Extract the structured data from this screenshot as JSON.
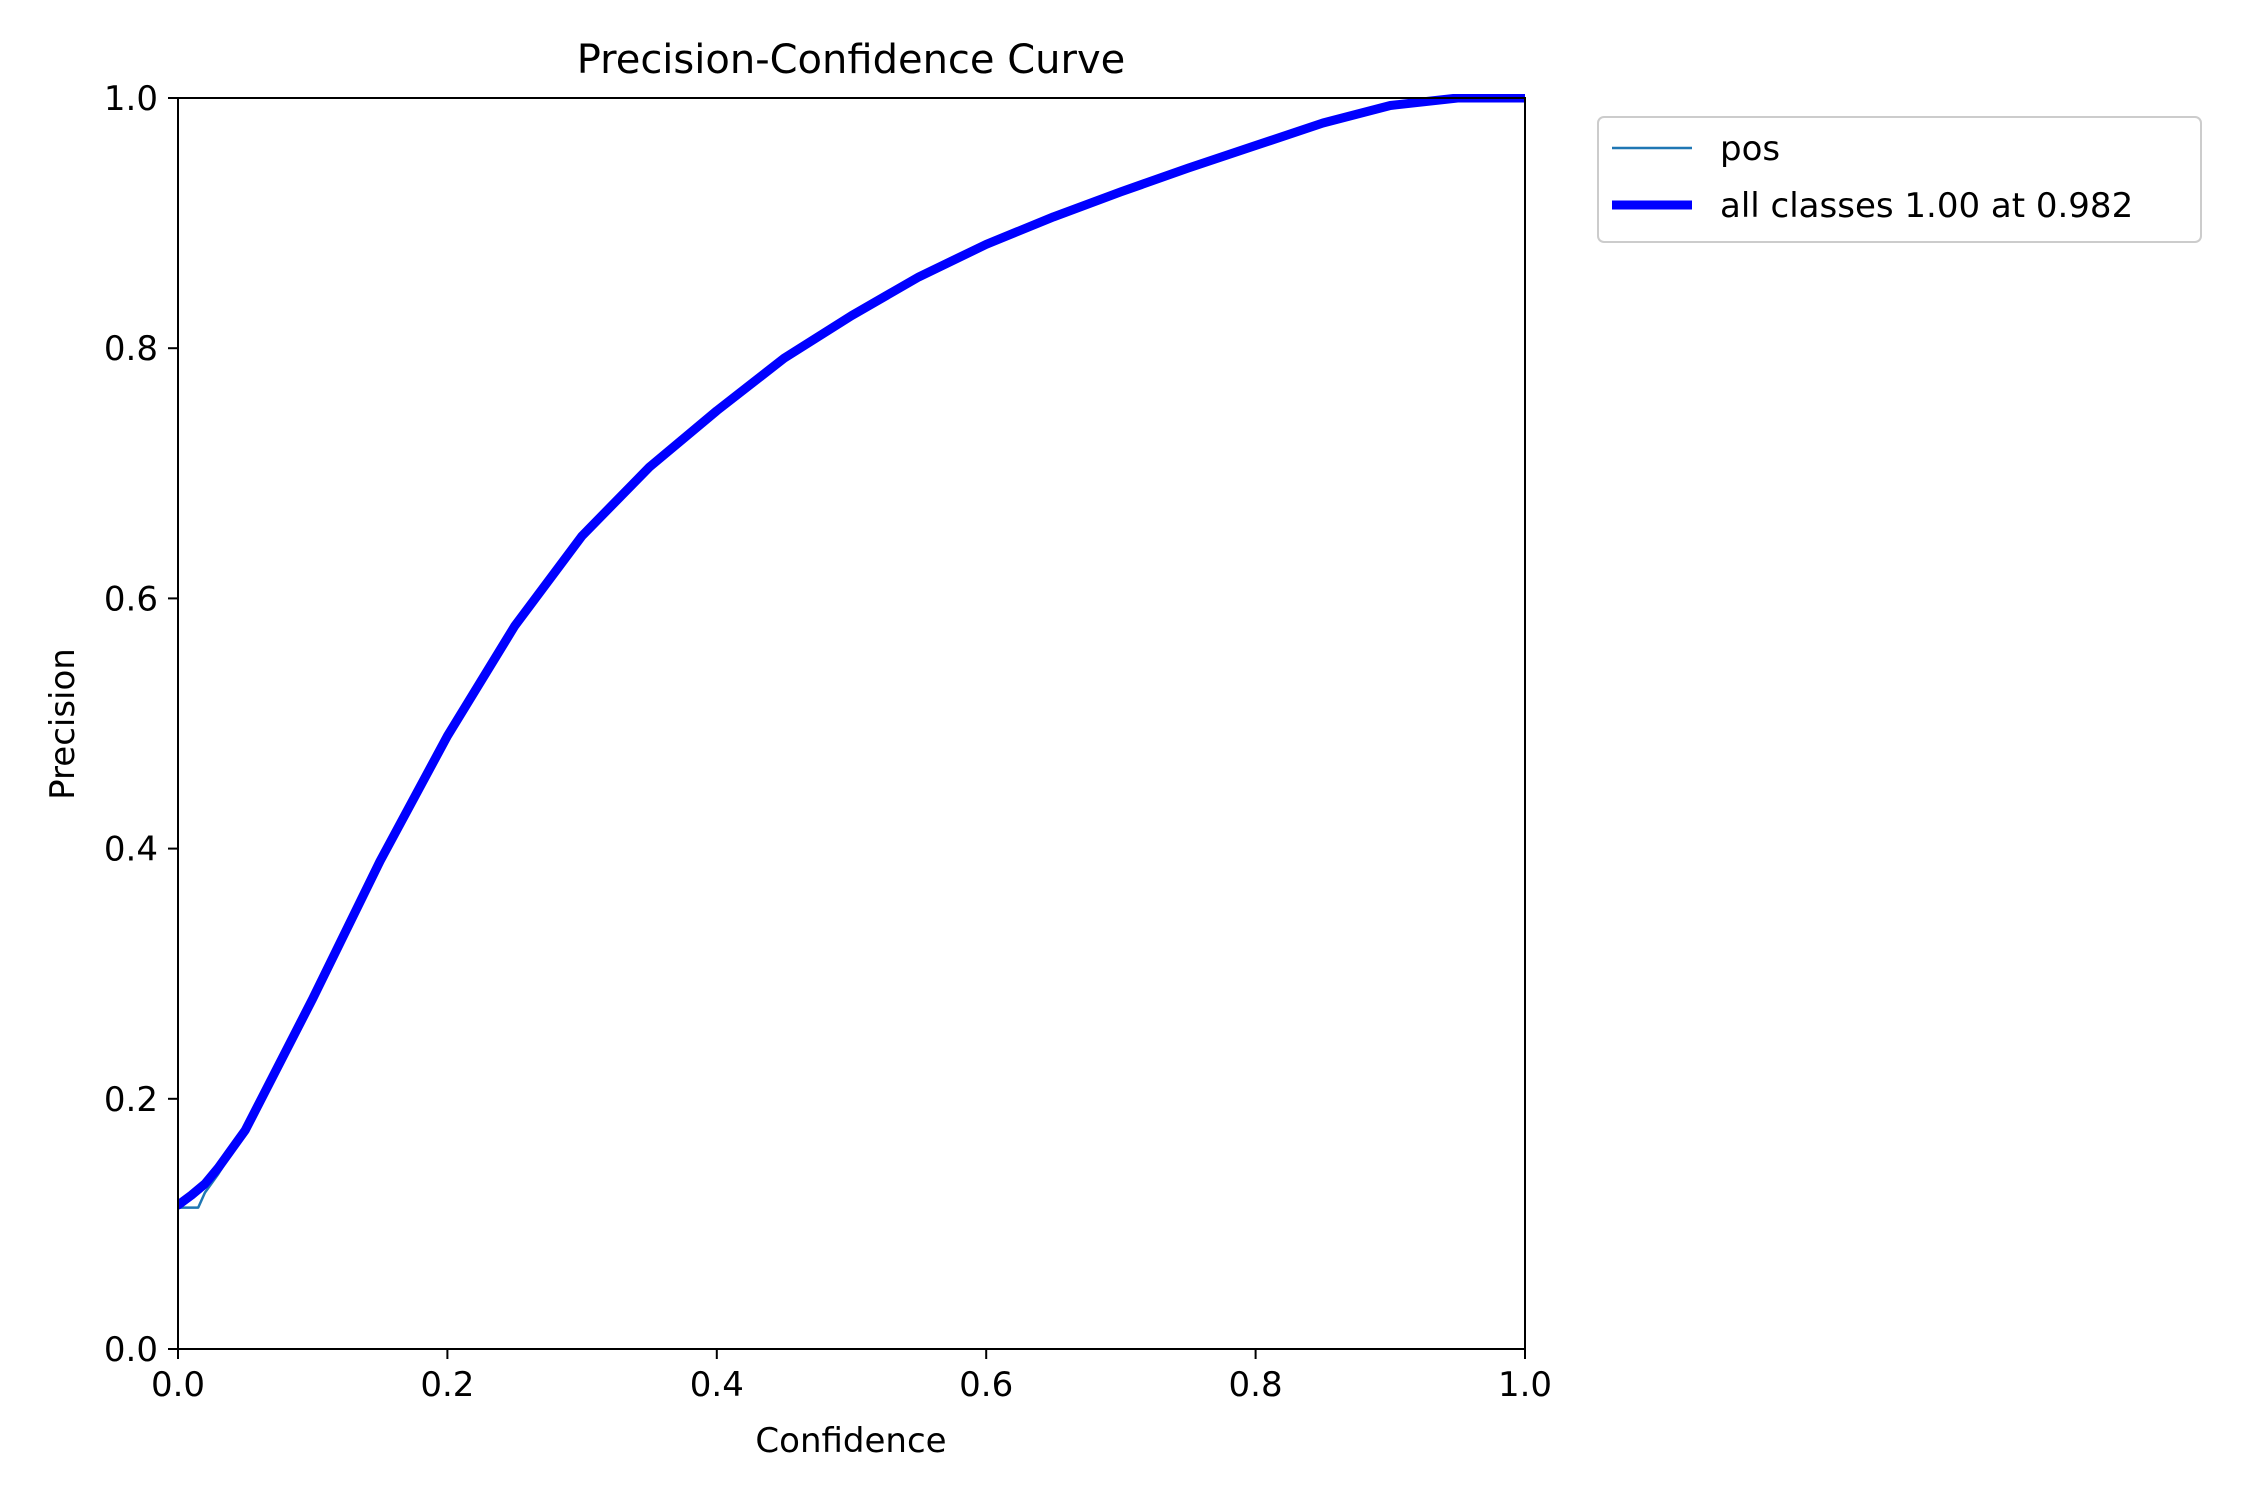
{
  "chart_data": {
    "type": "line",
    "title": "Precision-Confidence Curve",
    "xlabel": "Confidence",
    "ylabel": "Precision",
    "xlim": [
      0,
      1
    ],
    "ylim": [
      0,
      1
    ],
    "grid": false,
    "legend_position": "outside upper right",
    "x_ticks": [
      "0.0",
      "0.2",
      "0.4",
      "0.6",
      "0.8",
      "1.0"
    ],
    "y_ticks": [
      "0.0",
      "0.2",
      "0.4",
      "0.6",
      "0.8",
      "1.0"
    ],
    "series": [
      {
        "name": "pos",
        "color": "#1f77b4",
        "style": "thin",
        "points": [
          [
            0.0,
            0.113
          ],
          [
            0.015,
            0.113
          ],
          [
            0.02,
            0.125
          ],
          [
            0.03,
            0.14
          ],
          [
            0.05,
            0.175
          ],
          [
            0.1,
            0.28
          ],
          [
            0.15,
            0.39
          ],
          [
            0.2,
            0.49
          ],
          [
            0.25,
            0.578
          ],
          [
            0.3,
            0.65
          ],
          [
            0.35,
            0.705
          ],
          [
            0.4,
            0.75
          ],
          [
            0.45,
            0.792
          ],
          [
            0.5,
            0.826
          ],
          [
            0.55,
            0.857
          ],
          [
            0.6,
            0.883
          ],
          [
            0.65,
            0.905
          ],
          [
            0.7,
            0.925
          ],
          [
            0.75,
            0.944
          ],
          [
            0.8,
            0.962
          ],
          [
            0.85,
            0.98
          ],
          [
            0.9,
            0.994
          ],
          [
            0.95,
            1.0
          ],
          [
            1.0,
            1.0
          ]
        ]
      },
      {
        "name": "all classes 1.00 at 0.982",
        "color": "#0000ff",
        "style": "thick",
        "points": [
          [
            0.0,
            0.115
          ],
          [
            0.01,
            0.123
          ],
          [
            0.02,
            0.132
          ],
          [
            0.03,
            0.145
          ],
          [
            0.05,
            0.175
          ],
          [
            0.1,
            0.28
          ],
          [
            0.15,
            0.39
          ],
          [
            0.2,
            0.49
          ],
          [
            0.25,
            0.578
          ],
          [
            0.3,
            0.65
          ],
          [
            0.35,
            0.705
          ],
          [
            0.4,
            0.75
          ],
          [
            0.45,
            0.792
          ],
          [
            0.5,
            0.826
          ],
          [
            0.55,
            0.857
          ],
          [
            0.6,
            0.883
          ],
          [
            0.65,
            0.905
          ],
          [
            0.7,
            0.925
          ],
          [
            0.75,
            0.944
          ],
          [
            0.8,
            0.962
          ],
          [
            0.85,
            0.98
          ],
          [
            0.9,
            0.994
          ],
          [
            0.95,
            1.0
          ],
          [
            1.0,
            1.0
          ]
        ]
      }
    ]
  }
}
